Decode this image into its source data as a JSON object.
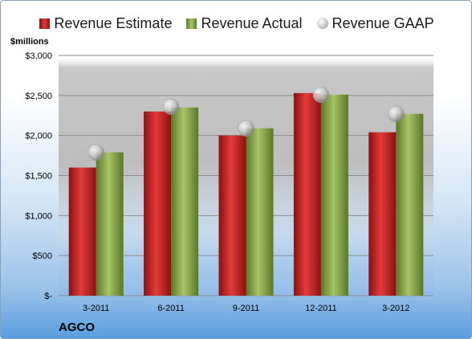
{
  "chart_data": {
    "type": "bar",
    "categories": [
      "3-2011",
      "6-2011",
      "9-2011",
      "12-2011",
      "3-2012"
    ],
    "series": [
      {
        "name": "Revenue Estimate",
        "values": [
          1600,
          2300,
          2000,
          2530,
          2040
        ],
        "color": "#cc2222"
      },
      {
        "name": "Revenue Actual",
        "values": [
          1790,
          2350,
          2090,
          2510,
          2270
        ],
        "color": "#8fae4f"
      },
      {
        "name": "Revenue GAAP",
        "values": [
          1790,
          2360,
          2090,
          2510,
          2270
        ],
        "color": "#c0c0c0",
        "marker": "circle"
      }
    ],
    "ylim": [
      0,
      3000
    ],
    "yticks": [
      "$-",
      "$500",
      "$1,000",
      "$1,500",
      "$2,000",
      "$2,500",
      "$3,000"
    ],
    "ytick_values": [
      0,
      500,
      1000,
      1500,
      2000,
      2500,
      3000
    ],
    "ylabel": "$millions",
    "legend": {
      "placement": "top"
    },
    "grid": true
  },
  "footer": {
    "company": "AGCO"
  }
}
